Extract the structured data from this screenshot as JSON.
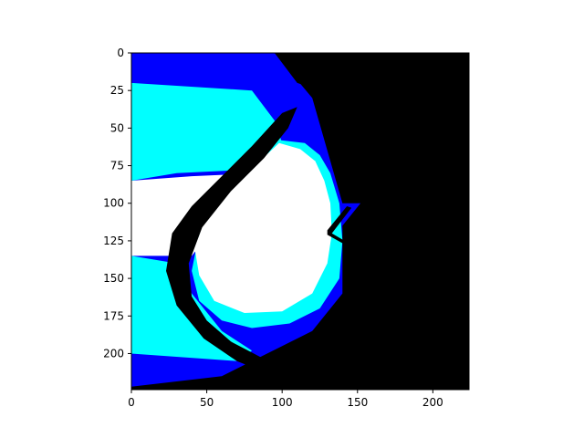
{
  "chart_data": {
    "type": "heatmap",
    "title": "",
    "xlabel": "",
    "ylabel": "",
    "xlim": [
      0,
      224
    ],
    "ylim": [
      224,
      0
    ],
    "x_ticks": [
      0,
      50,
      100,
      150,
      200
    ],
    "y_ticks": [
      0,
      25,
      50,
      75,
      100,
      125,
      150,
      175,
      200
    ],
    "x_tick_labels": [
      "0",
      "50",
      "100",
      "150",
      "200"
    ],
    "y_tick_labels": [
      "0",
      "25",
      "50",
      "75",
      "100",
      "125",
      "150",
      "175",
      "200"
    ],
    "colors": {
      "blue": "#0000ff",
      "medium_blue": "#1a1aff",
      "cyan": "#00ffff",
      "white": "#ffffff",
      "black": "#000000"
    },
    "regions": [
      {
        "name": "blue-region",
        "color": "blue",
        "polygon": [
          [
            0,
            0
          ],
          [
            95,
            0
          ],
          [
            110,
            20
          ],
          [
            140,
            30
          ],
          [
            170,
            35
          ],
          [
            182,
            50
          ],
          [
            165,
            75
          ],
          [
            152,
            100
          ],
          [
            140,
            115
          ],
          [
            140,
            160
          ],
          [
            120,
            185
          ],
          [
            90,
            200
          ],
          [
            60,
            215
          ],
          [
            0,
            222
          ],
          [
            0,
            0
          ]
        ]
      },
      {
        "name": "cyan-region",
        "color": "cyan",
        "polygon": [
          [
            0,
            20
          ],
          [
            80,
            25
          ],
          [
            95,
            45
          ],
          [
            100,
            60
          ],
          [
            70,
            78
          ],
          [
            30,
            80
          ],
          [
            0,
            85
          ],
          [
            0,
            20
          ]
        ]
      },
      {
        "name": "cyan-lower-region",
        "color": "cyan",
        "polygon": [
          [
            0,
            135
          ],
          [
            30,
            140
          ],
          [
            40,
            160
          ],
          [
            60,
            185
          ],
          [
            80,
            198
          ],
          [
            70,
            205
          ],
          [
            0,
            200
          ],
          [
            0,
            135
          ]
        ]
      },
      {
        "name": "white-left-region",
        "color": "white",
        "polygon": [
          [
            0,
            85
          ],
          [
            40,
            82
          ],
          [
            85,
            80
          ],
          [
            60,
            110
          ],
          [
            40,
            135
          ],
          [
            0,
            135
          ],
          [
            0,
            85
          ]
        ]
      },
      {
        "name": "right-background",
        "color": "black",
        "polygon": [
          [
            95,
            0
          ],
          [
            224,
            0
          ],
          [
            224,
            224
          ],
          [
            95,
            224
          ],
          [
            95,
            210
          ],
          [
            120,
            200
          ],
          [
            150,
            185
          ],
          [
            155,
            165
          ],
          [
            150,
            140
          ],
          [
            152,
            110
          ],
          [
            165,
            100
          ],
          [
            140,
            100
          ],
          [
            120,
            30
          ],
          [
            95,
            0
          ]
        ]
      },
      {
        "name": "cyan-rim",
        "color": "cyan",
        "polygon": [
          [
            98,
            58
          ],
          [
            115,
            60
          ],
          [
            125,
            68
          ],
          [
            132,
            80
          ],
          [
            138,
            100
          ],
          [
            140,
            125
          ],
          [
            138,
            150
          ],
          [
            125,
            170
          ],
          [
            105,
            180
          ],
          [
            80,
            183
          ],
          [
            60,
            178
          ],
          [
            45,
            165
          ],
          [
            40,
            145
          ],
          [
            45,
            120
          ],
          [
            60,
            100
          ],
          [
            80,
            78
          ]
        ]
      },
      {
        "name": "white-lens",
        "color": "white",
        "polygon": [
          [
            98,
            60
          ],
          [
            112,
            64
          ],
          [
            122,
            72
          ],
          [
            128,
            85
          ],
          [
            132,
            100
          ],
          [
            133,
            120
          ],
          [
            130,
            140
          ],
          [
            120,
            160
          ],
          [
            100,
            172
          ],
          [
            75,
            173
          ],
          [
            55,
            165
          ],
          [
            45,
            148
          ],
          [
            42,
            130
          ],
          [
            48,
            112
          ],
          [
            62,
            95
          ],
          [
            82,
            75
          ]
        ]
      },
      {
        "name": "black-band",
        "color": "black",
        "polygon": [
          [
            100,
            40
          ],
          [
            110,
            36
          ],
          [
            104,
            50
          ],
          [
            88,
            70
          ],
          [
            66,
            92
          ],
          [
            47,
            116
          ],
          [
            38,
            140
          ],
          [
            40,
            162
          ],
          [
            50,
            178
          ],
          [
            66,
            192
          ],
          [
            85,
            202
          ],
          [
            100,
            210
          ],
          [
            90,
            213
          ],
          [
            70,
            205
          ],
          [
            48,
            190
          ],
          [
            30,
            168
          ],
          [
            23,
            145
          ],
          [
            27,
            120
          ],
          [
            40,
            102
          ],
          [
            58,
            84
          ],
          [
            80,
            62
          ]
        ]
      },
      {
        "name": "thin-line",
        "color": "black",
        "polygon": [
          [
            130,
            118
          ],
          [
            143,
            102
          ],
          [
            146,
            103
          ],
          [
            133,
            120
          ],
          [
            150,
            130
          ],
          [
            148,
            131
          ],
          [
            130,
            121
          ]
        ]
      }
    ]
  }
}
